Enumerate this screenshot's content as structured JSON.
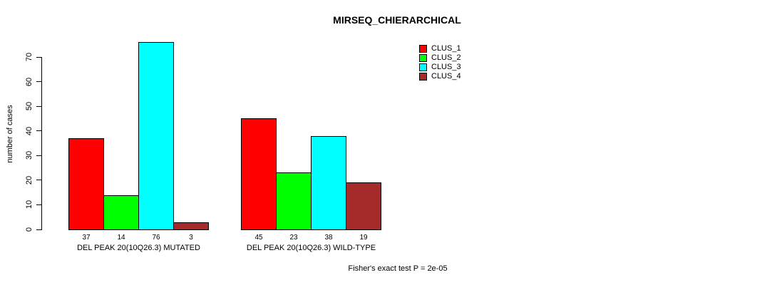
{
  "chart_data": {
    "type": "bar",
    "title": "MIRSEQ_CHIERARCHICAL",
    "ylabel": "number of cases",
    "xlabel": "",
    "ylim": [
      0,
      70
    ],
    "y_ticks": [
      0,
      10,
      20,
      30,
      40,
      50,
      60,
      70
    ],
    "grid": false,
    "legend_position": "inner-top-right",
    "categories": [
      "DEL PEAK 20(10Q26.3) MUTATED",
      "DEL PEAK 20(10Q26.3) WILD-TYPE"
    ],
    "series": [
      {
        "name": "CLUS_1",
        "color": "#FF0000",
        "values": [
          37,
          45
        ]
      },
      {
        "name": "CLUS_2",
        "color": "#00FF00",
        "values": [
          14,
          23
        ]
      },
      {
        "name": "CLUS_3",
        "color": "#00FFFF",
        "values": [
          76,
          38
        ]
      },
      {
        "name": "CLUS_4",
        "color": "#A52A2A",
        "values": [
          3,
          19
        ]
      }
    ],
    "annotation": "Fisher's exact test P = 2e-05",
    "axis_color": "#000000",
    "text_color": "#000000",
    "background_color": "#FFFFFF"
  }
}
